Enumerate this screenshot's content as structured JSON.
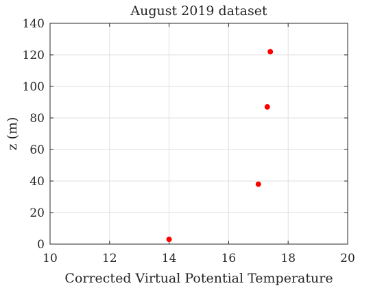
{
  "chart_data": {
    "type": "scatter",
    "title": "August 2019 dataset",
    "xlabel": "Corrected Virtual Potential Temperature",
    "ylabel": "z (m)",
    "xlim": [
      10,
      20
    ],
    "ylim": [
      0,
      140
    ],
    "xticks": [
      "10",
      "12",
      "14",
      "16",
      "18",
      "20"
    ],
    "yticks": [
      "0",
      "20",
      "40",
      "60",
      "80",
      "100",
      "120",
      "140"
    ],
    "grid": true,
    "box": true,
    "marker_color": "#ff0000",
    "points": [
      {
        "x": 14.0,
        "y": 3
      },
      {
        "x": 17.0,
        "y": 38
      },
      {
        "x": 17.3,
        "y": 87
      },
      {
        "x": 17.4,
        "y": 122
      }
    ]
  }
}
